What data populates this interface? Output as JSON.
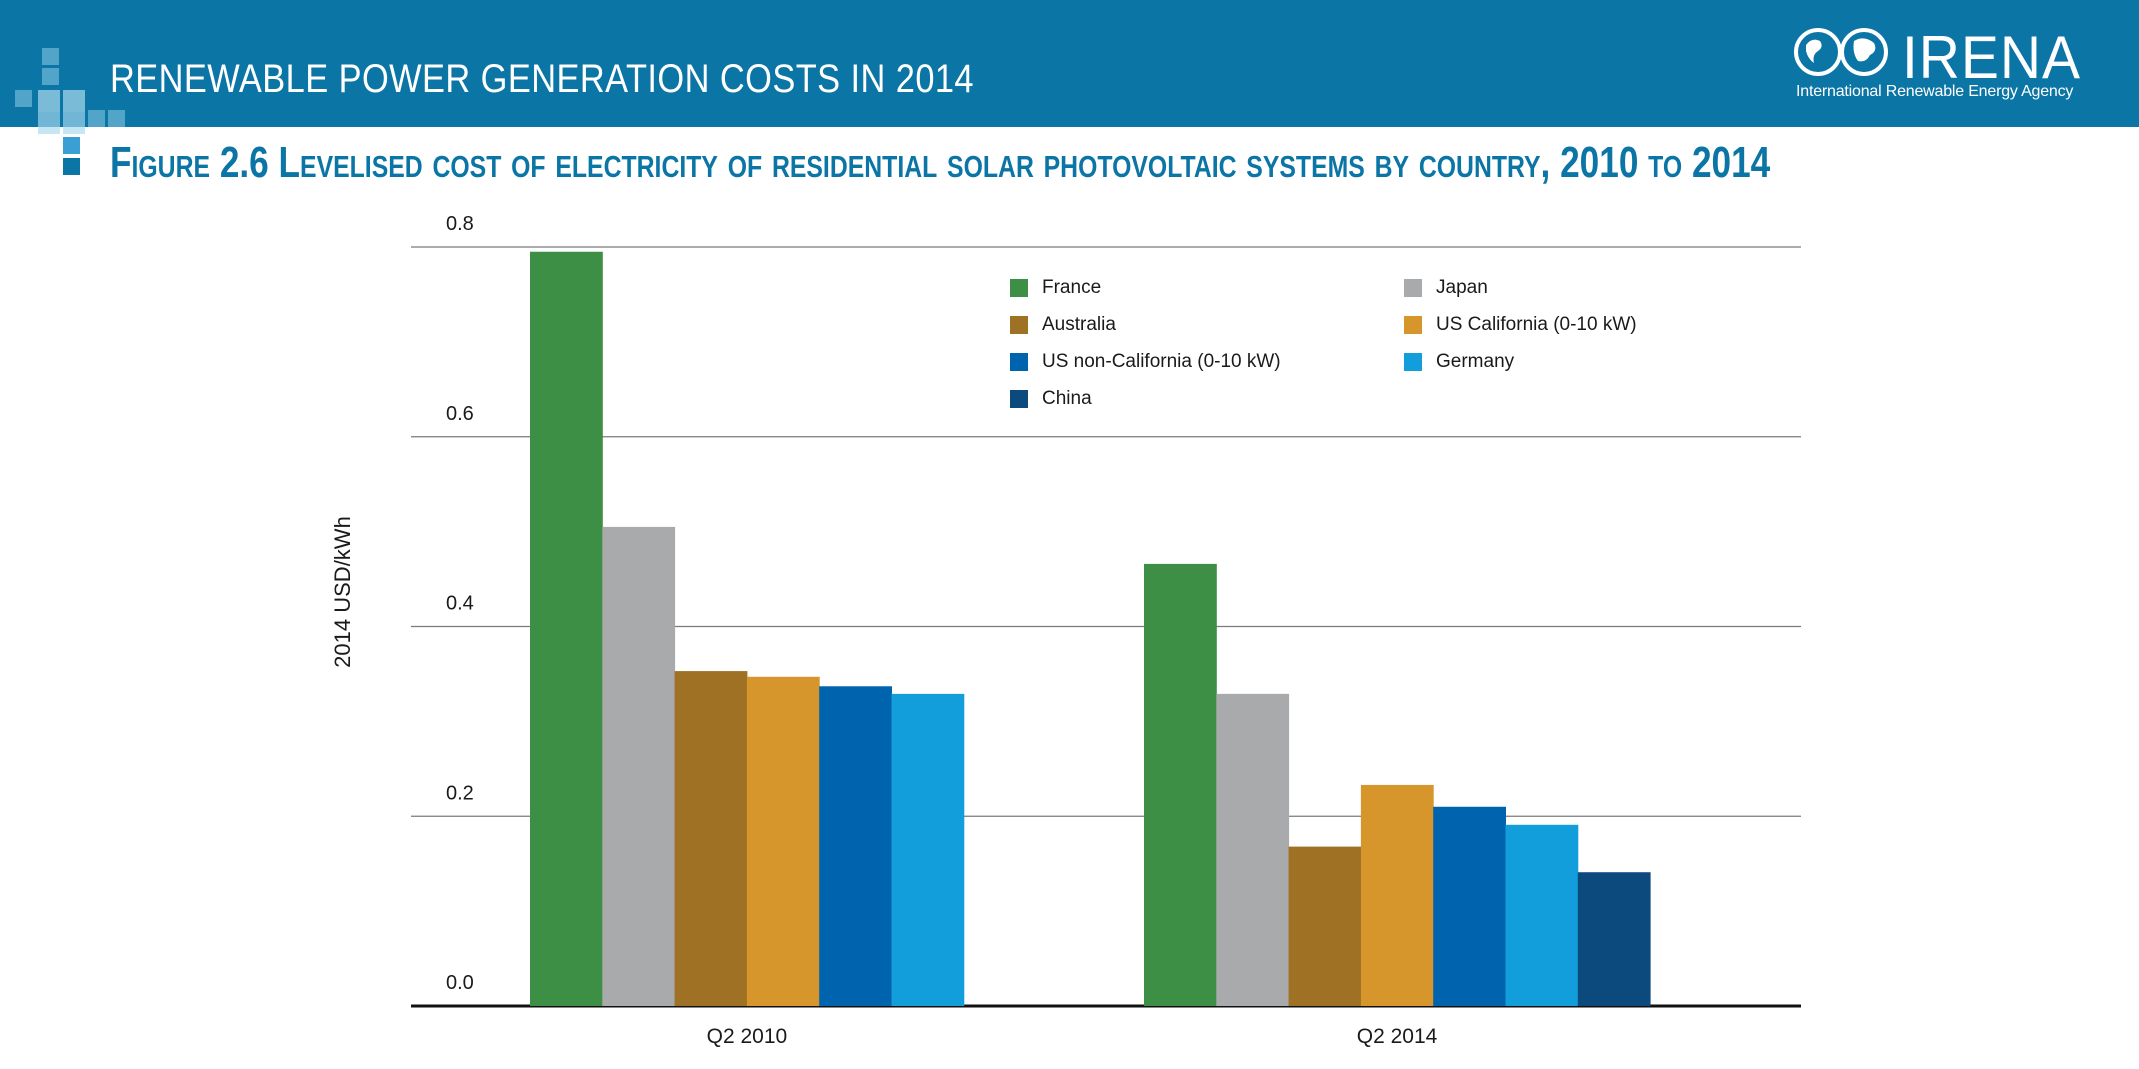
{
  "header": {
    "title": "RENEWABLE POWER GENERATION COSTS IN 2014",
    "brand_name": "IRENA",
    "brand_tagline": "International Renewable Energy Agency"
  },
  "figure": {
    "title": "Figure 2.6 Levelised cost of electricity of residential solar photovoltaic systems by country, 2010 to 2014"
  },
  "colors": {
    "header_bg": "#0b75a6",
    "France": "#3c8f44",
    "Japan": "#a8aaab",
    "Australia": "#9e7125",
    "US California (0-10 kW)": "#d6962b",
    "US non-California (0-10 kW)": "#0063ad",
    "Germany": "#129edb",
    "China": "#0c4a7e"
  },
  "chart_data": {
    "type": "bar",
    "title": "",
    "xlabel": "",
    "ylabel": "2014 USD/kWh",
    "ylim": [
      0,
      0.8
    ],
    "yticks": [
      "0.0",
      "0.2",
      "0.4",
      "0.6",
      "0.8"
    ],
    "grid": true,
    "legend_position": "top-right",
    "categories": [
      "Q2 2010",
      "Q2 2014"
    ],
    "series": [
      {
        "name": "France",
        "values": [
          0.795,
          0.466
        ]
      },
      {
        "name": "Japan",
        "values": [
          0.505,
          0.329
        ]
      },
      {
        "name": "Australia",
        "values": [
          0.353,
          0.168
        ]
      },
      {
        "name": "US California (0-10 kW)",
        "values": [
          0.347,
          0.233
        ]
      },
      {
        "name": "US non-California (0-10 kW)",
        "values": [
          0.337,
          0.21
        ]
      },
      {
        "name": "Germany",
        "values": [
          0.329,
          0.191
        ]
      },
      {
        "name": "China",
        "values": [
          null,
          0.141
        ]
      }
    ]
  }
}
